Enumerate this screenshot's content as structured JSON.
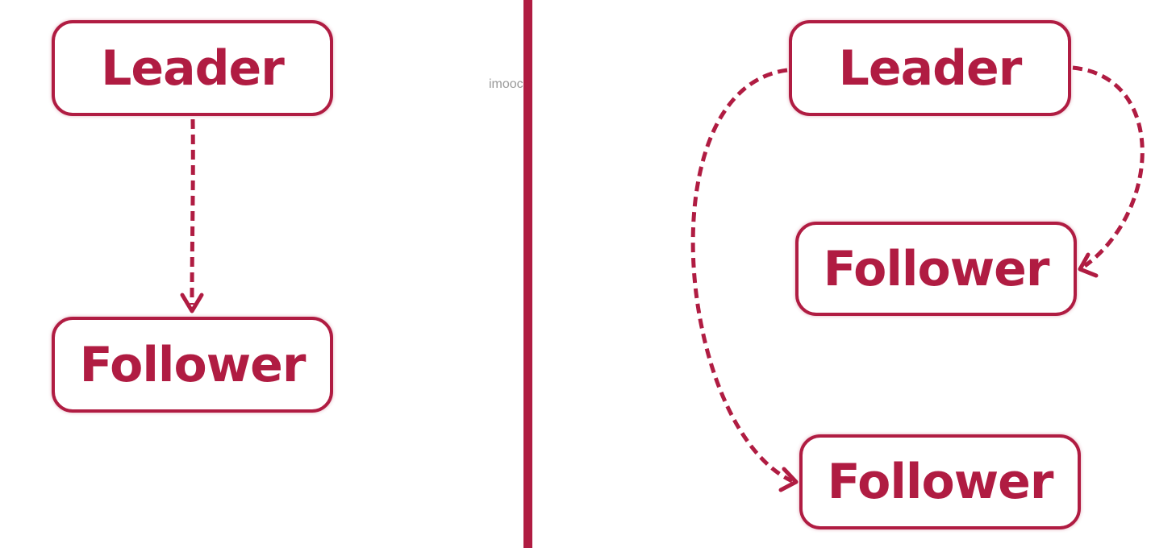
{
  "left_diagram": {
    "leader_label": "Leader",
    "follower_label": "Follower"
  },
  "right_diagram": {
    "leader_label": "Leader",
    "follower_1_label": "Follower",
    "follower_2_label": "Follower"
  },
  "watermark_text": "imooc",
  "colors": {
    "accent": "#b01c42",
    "background": "#ffffff",
    "watermark": "#9a9a9a"
  }
}
